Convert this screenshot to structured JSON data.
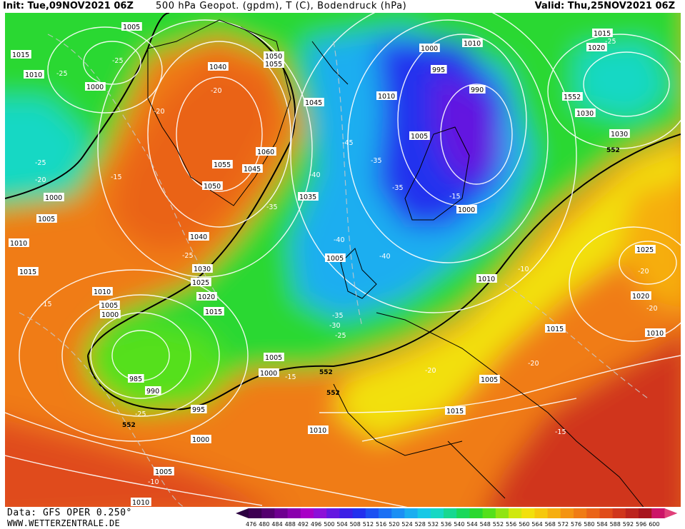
{
  "header": {
    "init": "Init: Tue,09NOV2021 06Z",
    "title": "500 hPa Geopot. (gpdm), T (C), Bodendruck (hPa)",
    "valid": "Valid: Thu,25NOV2021 06Z"
  },
  "footer": {
    "source": "Data: GFS OPER 0.250°",
    "website": "WWW.WETTERZENTRALE.DE"
  },
  "legend": {
    "values": [
      "476",
      "480",
      "484",
      "488",
      "492",
      "496",
      "500",
      "504",
      "508",
      "512",
      "516",
      "520",
      "524",
      "528",
      "532",
      "536",
      "540",
      "544",
      "548",
      "552",
      "556",
      "560",
      "564",
      "568",
      "572",
      "576",
      "580",
      "584",
      "588",
      "592",
      "596",
      "600"
    ],
    "colors": [
      "#3d0052",
      "#54006f",
      "#6e0090",
      "#8a00ad",
      "#a800c6",
      "#8c10d8",
      "#6418e0",
      "#3c1fe6",
      "#2230ee",
      "#1c50f2",
      "#1b6ff4",
      "#1b8ff4",
      "#1aaef0",
      "#18c8e6",
      "#16d8c4",
      "#17d890",
      "#1ad85a",
      "#2ad830",
      "#54e01c",
      "#90e414",
      "#d0e80e",
      "#f2e00c",
      "#f6c80c",
      "#f6ae10",
      "#f49412",
      "#f07c14",
      "#ea6418",
      "#e04c1a",
      "#d0361c",
      "#bc241e",
      "#a8141e",
      "#cc1468"
    ]
  },
  "pressure_labels": [
    "1005",
    "1015",
    "1010",
    "1000",
    "1040",
    "1050",
    "1055",
    "1045",
    "1060",
    "1055",
    "1045",
    "1050",
    "1035",
    "1000",
    "1005",
    "1010",
    "1015",
    "1040",
    "1030",
    "1025",
    "1020",
    "1015",
    "1010",
    "1005",
    "1000",
    "985",
    "990",
    "995",
    "1000",
    "1005",
    "1010",
    "1000",
    "1005",
    "1000",
    "995",
    "990",
    "1010",
    "1005",
    "1000",
    "1005",
    "1010",
    "1010",
    "1015",
    "1020",
    "1552",
    "1030",
    "1030",
    "1025",
    "1020",
    "1010",
    "1015",
    "1005",
    "1015",
    "1010"
  ],
  "temperature_labels": [
    "-25",
    "-25",
    "-20",
    "-25",
    "-20",
    "-15",
    "-20",
    "-25",
    "-35",
    "-40",
    "-45",
    "-35",
    "-35",
    "-40",
    "-40",
    "-35",
    "-30",
    "-25",
    "-25",
    "-15",
    "-10",
    "-15",
    "-10",
    "-20",
    "-20",
    "-15",
    "-25",
    "-20",
    "-20",
    "-15"
  ],
  "height_labels": [
    "552",
    "552",
    "552",
    "552"
  ]
}
